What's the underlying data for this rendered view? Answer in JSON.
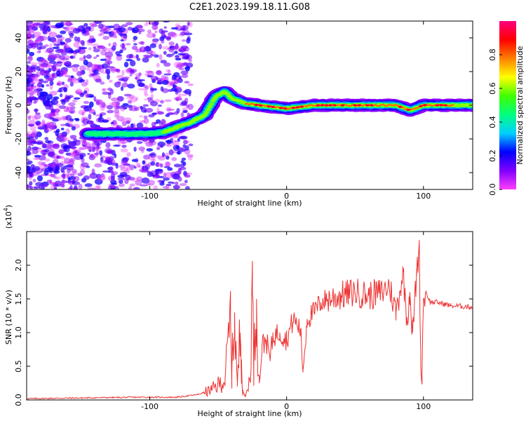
{
  "title": "C2E1.2023.199.18.11.G08",
  "chart_data": [
    {
      "type": "heatmap",
      "xlabel": "Height of straight line (km)",
      "ylabel": "Frequency (Hz)",
      "xlim": [
        -190,
        136
      ],
      "ylim": [
        -50,
        50
      ],
      "xticks": [
        -100,
        0,
        100
      ],
      "xtick_labels": [
        "-100",
        "0",
        "100"
      ],
      "yticks": [
        -40,
        -20,
        0,
        20,
        40
      ],
      "ytick_labels": [
        "-40",
        "-20",
        "0",
        "20",
        "40"
      ],
      "colorbar": {
        "label": "Normalized spectral amplitude",
        "range": [
          0,
          1
        ],
        "ticks": [
          0.0,
          0.2,
          0.4,
          0.6,
          0.8
        ],
        "tick_labels": [
          "0.0",
          "0.2",
          "0.4",
          "0.6",
          "0.8"
        ],
        "colors": [
          "#ff40ff",
          "#8000ff",
          "#0000ff",
          "#00d0ff",
          "#00ff80",
          "#40ff00",
          "#ffff00",
          "#ff8000",
          "#ff0000",
          "#ff0080"
        ]
      },
      "ridge": [
        {
          "x": -145,
          "y": -17,
          "amplitude": 0.45
        },
        {
          "x": -120,
          "y": -17,
          "amplitude": 0.45
        },
        {
          "x": -100,
          "y": -17,
          "amplitude": 0.5
        },
        {
          "x": -90,
          "y": -16,
          "amplitude": 0.6
        },
        {
          "x": -80,
          "y": -13,
          "amplitude": 0.6
        },
        {
          "x": -70,
          "y": -10,
          "amplitude": 0.65
        },
        {
          "x": -60,
          "y": -6,
          "amplitude": 0.65
        },
        {
          "x": -52,
          "y": 5,
          "amplitude": 0.7
        },
        {
          "x": -45,
          "y": 8,
          "amplitude": 0.65
        },
        {
          "x": -40,
          "y": 4,
          "amplitude": 0.75
        },
        {
          "x": -30,
          "y": 1,
          "amplitude": 0.8
        },
        {
          "x": -20,
          "y": 0,
          "amplitude": 0.85
        },
        {
          "x": 0,
          "y": -2,
          "amplitude": 0.9
        },
        {
          "x": 20,
          "y": 0,
          "amplitude": 0.85
        },
        {
          "x": 50,
          "y": 0,
          "amplitude": 0.9
        },
        {
          "x": 80,
          "y": 0,
          "amplitude": 0.9
        },
        {
          "x": 90,
          "y": -3,
          "amplitude": 0.85
        },
        {
          "x": 100,
          "y": 0,
          "amplitude": 0.95
        },
        {
          "x": 136,
          "y": 0,
          "amplitude": 0.7
        }
      ]
    },
    {
      "type": "line",
      "xlabel": "Height of straight line (km)",
      "ylabel": "SNR (10 * v/v)",
      "y_multiplier": "(x10",
      "y_multiplier_exp": "4",
      "y_multiplier_close": ")",
      "xlim": [
        -190,
        136
      ],
      "ylim": [
        0,
        2.5
      ],
      "xticks": [
        -100,
        0,
        100
      ],
      "xtick_labels": [
        "-100",
        "0",
        "100"
      ],
      "yticks": [
        0.0,
        0.5,
        1.0,
        1.5,
        2.0
      ],
      "ytick_labels": [
        "0.0",
        "0.5",
        "1.0",
        "1.5",
        "2.0"
      ],
      "series": [
        {
          "color": "#ee3030",
          "x": [
            -190,
            -150,
            -110,
            -80,
            -65,
            -55,
            -45,
            -41,
            -40,
            -38,
            -36,
            -34,
            -33,
            -32,
            -30,
            -27,
            -25,
            -24,
            -22,
            -20,
            -18,
            -15,
            -12,
            -10,
            -5,
            0,
            5,
            10,
            12,
            15,
            20,
            25,
            30,
            40,
            50,
            60,
            70,
            75,
            80,
            85,
            88,
            90,
            92,
            95,
            97,
            98,
            99,
            100,
            102,
            105,
            110,
            120,
            136
          ],
          "y": [
            0.02,
            0.03,
            0.04,
            0.04,
            0.08,
            0.15,
            0.3,
            1.2,
            0.4,
            1.3,
            0.2,
            1.0,
            0.6,
            0.15,
            0.05,
            0.3,
            1.6,
            0.5,
            1.5,
            0.25,
            0.8,
            0.9,
            0.6,
            0.95,
            1.0,
            0.9,
            1.2,
            1.05,
            0.45,
            1.2,
            1.3,
            1.45,
            1.5,
            1.55,
            1.6,
            1.55,
            1.6,
            1.7,
            1.3,
            1.9,
            1.2,
            1.6,
            1.0,
            1.85,
            2.3,
            0.5,
            0.45,
            1.5,
            1.6,
            1.45,
            1.45,
            1.4,
            1.38
          ]
        }
      ]
    }
  ]
}
